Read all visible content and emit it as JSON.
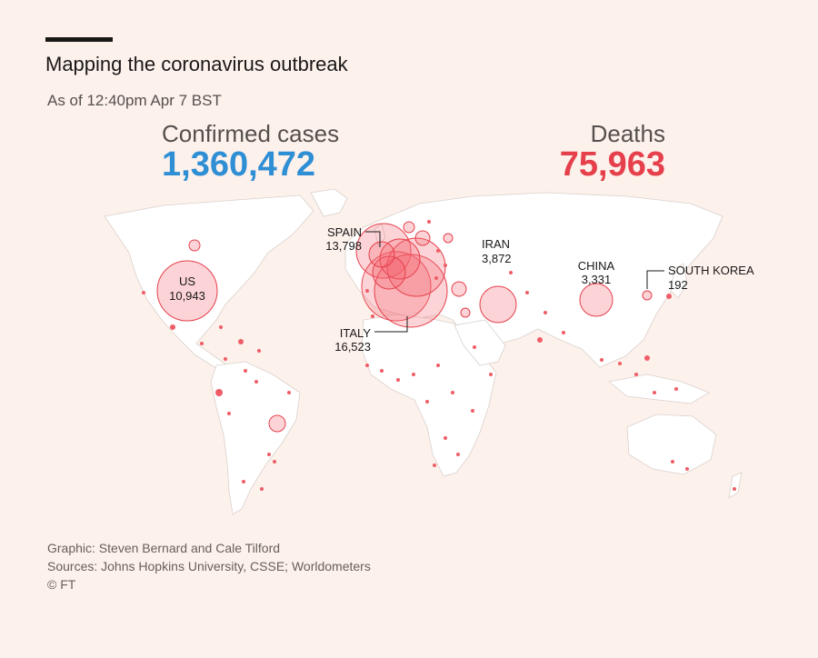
{
  "header": {
    "title": "Mapping the coronavirus outbreak",
    "subtitle": "As of 12:40pm Apr 7 BST"
  },
  "stats": {
    "cases_label": "Confirmed cases",
    "cases_value": "1,360,472",
    "deaths_label": "Deaths",
    "deaths_value": "75,963"
  },
  "colors": {
    "cases": "#2f8fd5",
    "deaths": "#e5404c",
    "background": "#fdf1ec"
  },
  "map": {
    "labels": {
      "us_name": "US",
      "us_value": "10,943",
      "spain_name": "SPAIN",
      "spain_value": "13,798",
      "italy_name": "ITALY",
      "italy_value": "16,523",
      "iran_name": "IRAN",
      "iran_value": "3,872",
      "china_name": "CHINA",
      "china_value": "3,331",
      "korea_name": "SOUTH KOREA",
      "korea_value": "192"
    }
  },
  "footer": {
    "graphic": "Graphic: Steven Bernard and Cale Tilford",
    "sources": "Sources: Johns Hopkins University, CSSE; Worldometers",
    "copyright": "© FT"
  }
}
